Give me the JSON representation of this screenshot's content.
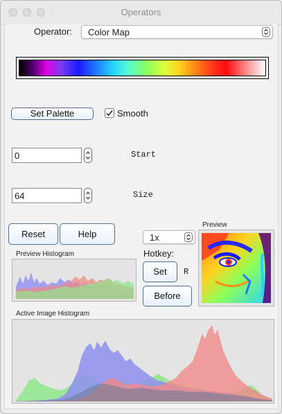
{
  "window": {
    "title": "Operators"
  },
  "operator": {
    "label": "Operator:",
    "value": "Color Map"
  },
  "palette": {
    "set_label": "Set Palette",
    "smooth_label": "Smooth",
    "smooth_checked": true
  },
  "start": {
    "value": "0",
    "label": "Start"
  },
  "size": {
    "value": "64",
    "label": "Size"
  },
  "buttons": {
    "reset": "Reset",
    "help": "Help",
    "set": "Set",
    "before": "Before"
  },
  "zoom": {
    "value": "1x"
  },
  "hotkey": {
    "label": "Hotkey:",
    "key": "R"
  },
  "preview": {
    "label": "Preview"
  },
  "preview_histogram": {
    "label": "Preview Histogram"
  },
  "active_histogram": {
    "label": "Active Image Histogram"
  },
  "colors": {
    "accent_border": "#4f6d95",
    "hist_red": "#f08a8a",
    "hist_green": "#8ee68a",
    "hist_blue": "#8f8ff0"
  }
}
